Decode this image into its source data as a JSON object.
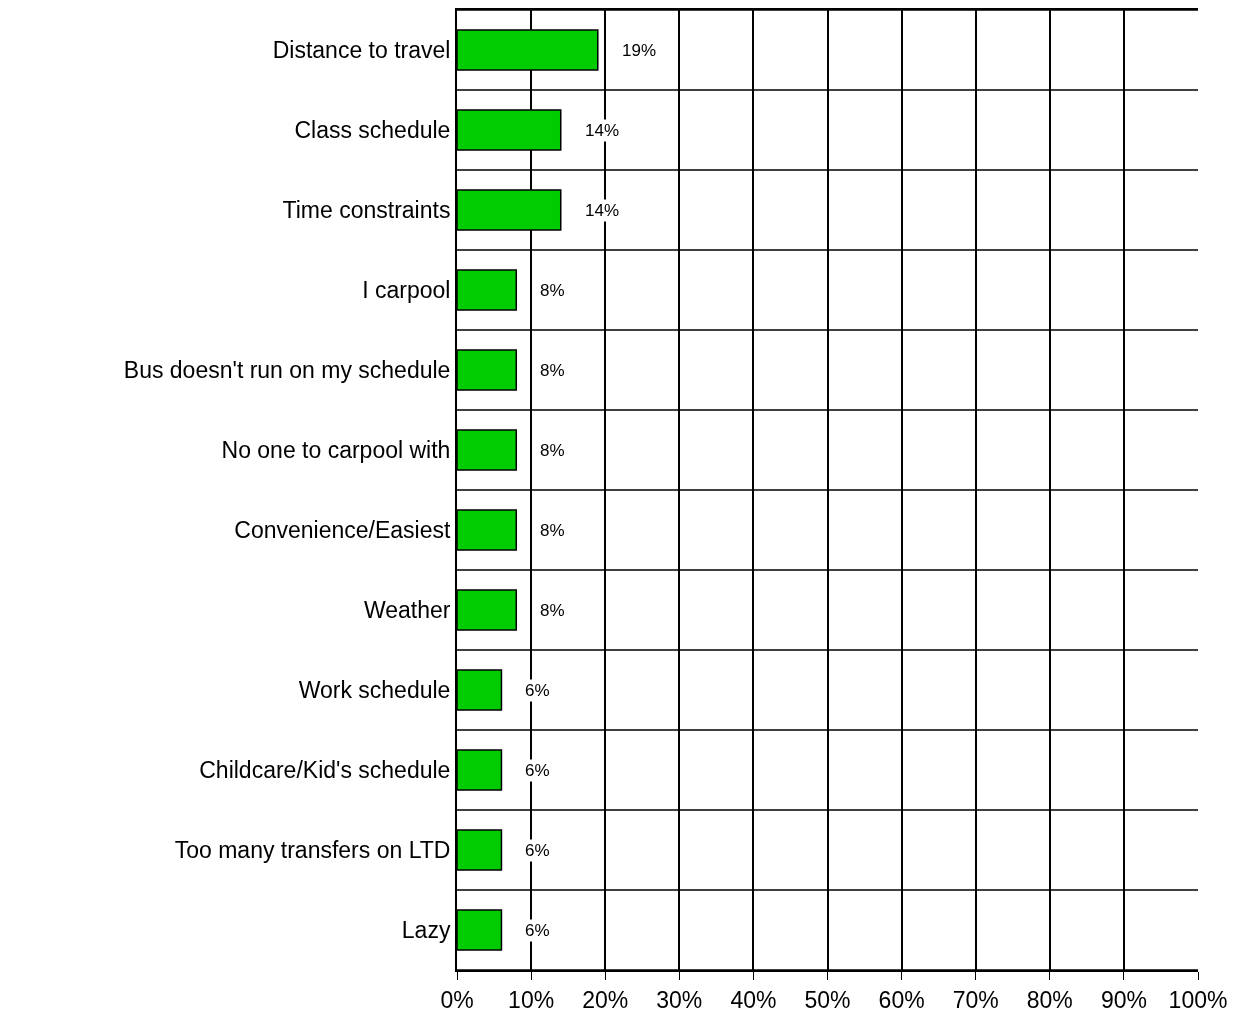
{
  "chart_data": {
    "type": "bar",
    "orientation": "horizontal",
    "categories": [
      "Distance to travel",
      "Class schedule",
      "Time constraints",
      "I carpool",
      "Bus doesn't run on my schedule",
      "No one to carpool with",
      "Convenience/Easiest",
      "Weather",
      "Work schedule",
      "Childcare/Kid's schedule",
      "Too many transfers on LTD",
      "Lazy"
    ],
    "values": [
      19,
      14,
      14,
      8,
      8,
      8,
      8,
      8,
      6,
      6,
      6,
      6
    ],
    "value_labels": [
      "19%",
      "14%",
      "14%",
      "8%",
      "8%",
      "8%",
      "8%",
      "8%",
      "6%",
      "6%",
      "6%",
      "6%"
    ],
    "color": "#00cc00",
    "xlim": [
      0,
      100
    ],
    "xticks": [
      {
        "value": 0,
        "label": "0%"
      },
      {
        "value": 10,
        "label": "10%"
      },
      {
        "value": 20,
        "label": "20%"
      },
      {
        "value": 30,
        "label": "30%"
      },
      {
        "value": 40,
        "label": "40%"
      },
      {
        "value": 50,
        "label": "50%"
      },
      {
        "value": 60,
        "label": "60%"
      },
      {
        "value": 70,
        "label": "70%"
      },
      {
        "value": 80,
        "label": "80%"
      },
      {
        "value": 90,
        "label": "90%"
      },
      {
        "value": 100,
        "label": "100%"
      }
    ],
    "grid": true
  }
}
